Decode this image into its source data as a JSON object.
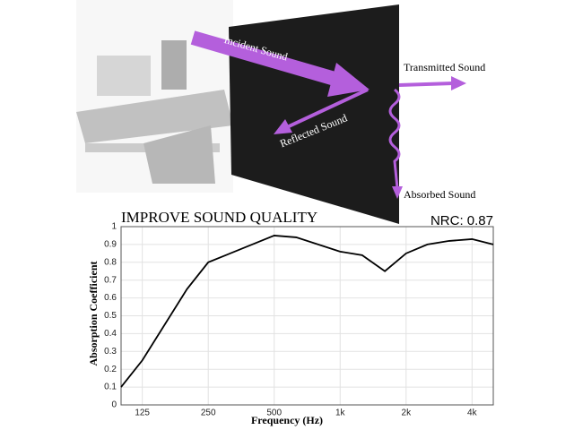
{
  "diagram": {
    "labels": [
      "Incident Sound",
      "Transmitted Sound",
      "Reflected Sound",
      "Absorbed Sound"
    ]
  },
  "chart_data": {
    "type": "line",
    "title": "IMPROVE SOUND QUALITY",
    "annotation": "NRC: 0.87",
    "xlabel": "Frequency (Hz)",
    "ylabel": "Absorption Coefficient",
    "x": [
      100,
      125,
      200,
      250,
      500,
      630,
      1000,
      1260,
      1600,
      2000,
      2500,
      3150,
      4000,
      5000
    ],
    "series": [
      {
        "name": "Absorption Coefficient",
        "color": "#000000",
        "values": [
          0.1,
          0.25,
          0.65,
          0.8,
          0.95,
          0.94,
          0.86,
          0.84,
          0.75,
          0.85,
          0.9,
          0.92,
          0.93,
          0.9
        ]
      }
    ],
    "xscale": "log",
    "xlim": [
      100,
      5000
    ],
    "xticks": [
      125,
      250,
      500,
      {
        "value": 1000,
        "label": "1k"
      },
      {
        "value": 2000,
        "label": "2k"
      },
      {
        "value": 4000,
        "label": "4k"
      }
    ],
    "ylim": [
      0,
      1
    ],
    "yticks": [
      0,
      0.1,
      0.2,
      0.3,
      0.4,
      0.5,
      0.6,
      0.7,
      0.8,
      0.9,
      1
    ],
    "grid": true
  }
}
